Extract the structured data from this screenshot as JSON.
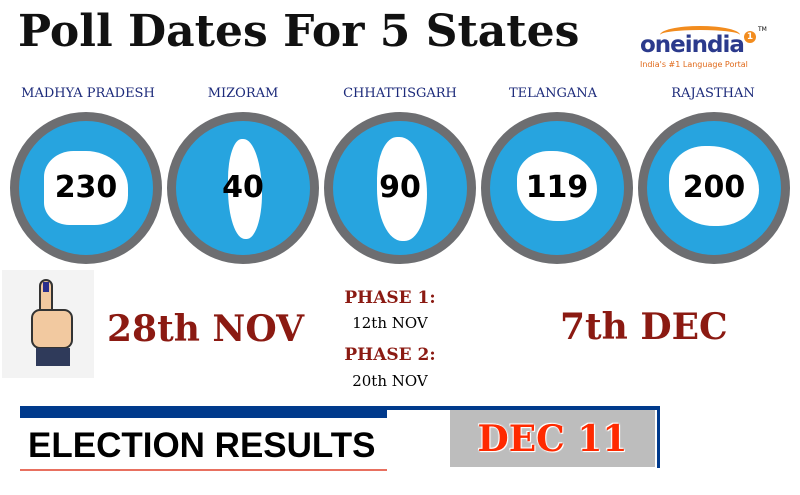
{
  "title": "Poll Dates For 5 States",
  "logo": {
    "name": "oneindia",
    "badge": "1",
    "tm": "TM",
    "tagline": "India's #1 Language Portal"
  },
  "states": [
    {
      "name": "MADHYA PRADESH",
      "seats": "230"
    },
    {
      "name": "MIZORAM",
      "seats": "40"
    },
    {
      "name": "CHHATTISGARH",
      "seats": "90"
    },
    {
      "name": "TELANGANA",
      "seats": "119"
    },
    {
      "name": "RAJASTHAN",
      "seats": "200"
    }
  ],
  "dates": {
    "first": "28th NOV",
    "phase1_label": "PHASE 1:",
    "phase1_date": "12th NOV",
    "phase2_label": "PHASE 2:",
    "phase2_date": "20th NOV",
    "last": "7th DEC"
  },
  "results": {
    "label": "ELECTION RESULTS",
    "date": "DEC 11"
  },
  "colors": {
    "circle": "#27a4df",
    "ring": "#6d6e71",
    "date_text": "#8b1a12",
    "results_date": "#ff2a00",
    "bar": "#003a8c"
  }
}
